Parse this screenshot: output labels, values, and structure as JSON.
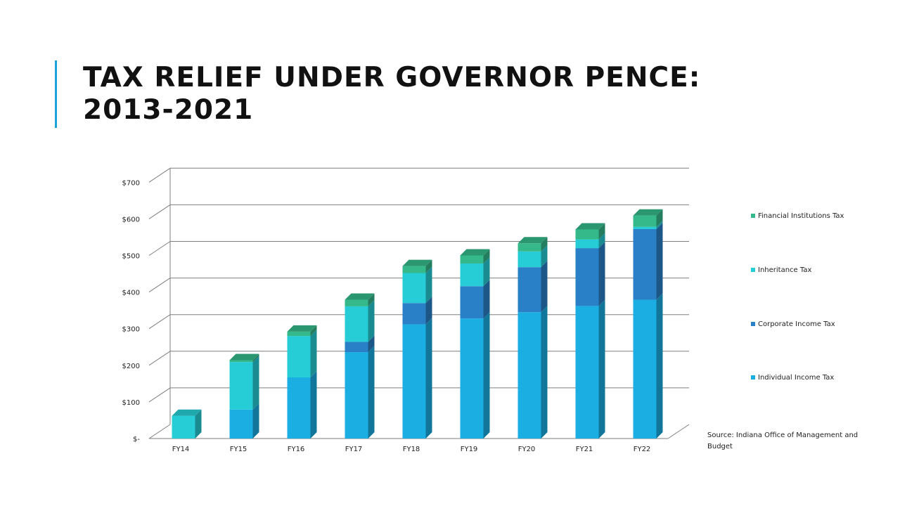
{
  "slide": {
    "title": "TAX RELIEF UNDER GOVERNOR PENCE: 2013-2021",
    "source": "Source: Indiana Office of Management and Budget"
  },
  "colors": {
    "accent_bar": "#1aa3d6",
    "series": [
      "#1aaee3",
      "#2a80c6",
      "#27cdd6",
      "#35b88a"
    ],
    "gridline": "#7f7f7f"
  },
  "chart_data": {
    "type": "bar",
    "stacked": true,
    "style": "3d-column",
    "categories": [
      "FY14",
      "FY15",
      "FY16",
      "FY17",
      "FY18",
      "FY19",
      "FY20",
      "FY21",
      "FY22"
    ],
    "series": [
      {
        "name": "Individual Income Tax",
        "color": "#1aaee3",
        "values": [
          0,
          79,
          167,
          236,
          312,
          328,
          345,
          362,
          379
        ]
      },
      {
        "name": "Corporate Income Tax",
        "color": "#2a80c6",
        "values": [
          0,
          0,
          0,
          28,
          58,
          88,
          123,
          158,
          193
        ]
      },
      {
        "name": "Inheritance Tax",
        "color": "#27cdd6",
        "values": [
          62,
          130,
          113,
          97,
          82,
          62,
          43,
          24,
          6
        ]
      },
      {
        "name": "Financial Institutions Tax",
        "color": "#35b88a",
        "values": [
          0,
          5,
          12,
          18,
          19,
          22,
          22,
          27,
          31
        ]
      }
    ],
    "yticks": [
      "$-",
      "$100",
      "$200",
      "$300",
      "$400",
      "$500",
      "$600",
      "$700"
    ],
    "ylim": [
      0,
      700
    ],
    "grid": true,
    "legend": "right",
    "legend_order": [
      "Financial Institutions Tax",
      "Inheritance Tax",
      "Corporate Income Tax",
      "Individual Income Tax"
    ]
  }
}
